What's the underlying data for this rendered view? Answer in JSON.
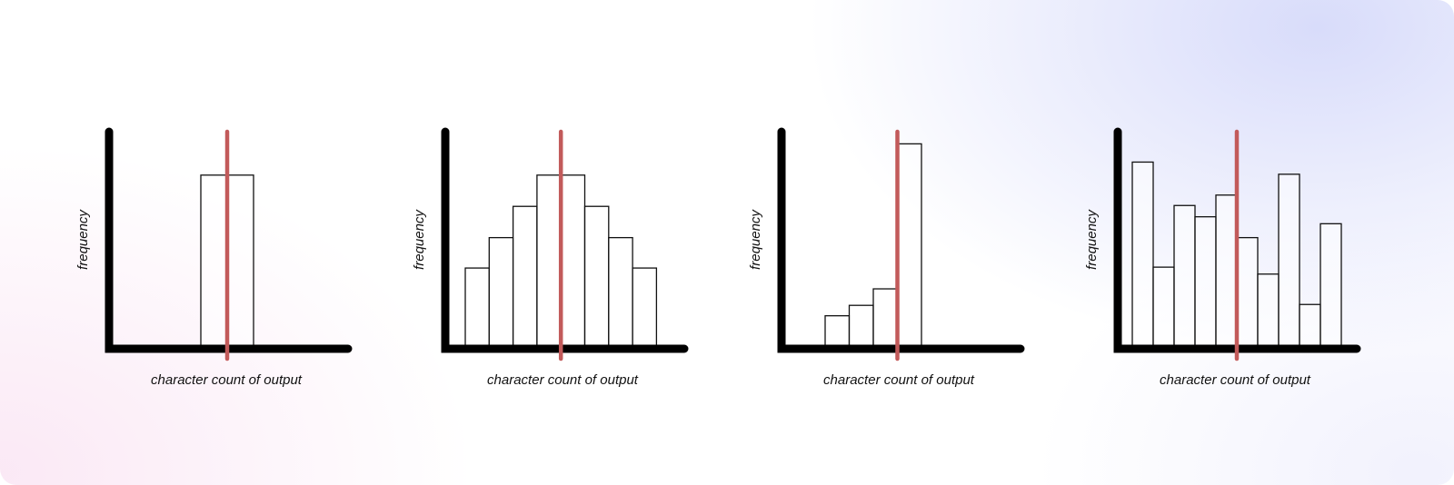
{
  "colors": {
    "bar_fill": "#ffffff",
    "bar_stroke": "#111111",
    "axis": "#000000",
    "marker": "#c25a5a"
  },
  "chart_data": [
    {
      "type": "bar",
      "xlabel": "character count of output",
      "ylabel": "frequency",
      "categories": [
        "1",
        "2"
      ],
      "values": [
        20,
        20
      ],
      "ylim": [
        0,
        25
      ],
      "grid": false,
      "tick_labels": false,
      "marker_line": {
        "position_between_bars": 1
      }
    },
    {
      "type": "bar",
      "xlabel": "character count of output",
      "ylabel": "frequency",
      "categories": [
        "1",
        "2",
        "3",
        "4",
        "5",
        "6",
        "7",
        "8"
      ],
      "values": [
        9.3,
        12.8,
        16.4,
        20,
        20,
        16.4,
        12.8,
        9.3
      ],
      "ylim": [
        0,
        25
      ],
      "grid": false,
      "tick_labels": false,
      "marker_line": {
        "position_between_bars": 4
      }
    },
    {
      "type": "bar",
      "xlabel": "character count of output",
      "ylabel": "frequency",
      "categories": [
        "1",
        "2",
        "3",
        "4"
      ],
      "values": [
        3.8,
        5,
        6.9,
        23.6
      ],
      "ylim": [
        0,
        25
      ],
      "grid": false,
      "tick_labels": false,
      "marker_line": {
        "position_between_bars": 3
      }
    },
    {
      "type": "bar",
      "xlabel": "character count of output",
      "ylabel": "frequency",
      "categories": [
        "1",
        "2",
        "3",
        "4",
        "5",
        "6",
        "7",
        "8",
        "9",
        "10"
      ],
      "values": [
        21.5,
        9.4,
        16.5,
        15.2,
        17.7,
        12.8,
        8.6,
        20.1,
        5.1,
        14.4
      ],
      "ylim": [
        0,
        25
      ],
      "grid": false,
      "tick_labels": false,
      "marker_line": {
        "position_between_bars": 5
      }
    }
  ]
}
